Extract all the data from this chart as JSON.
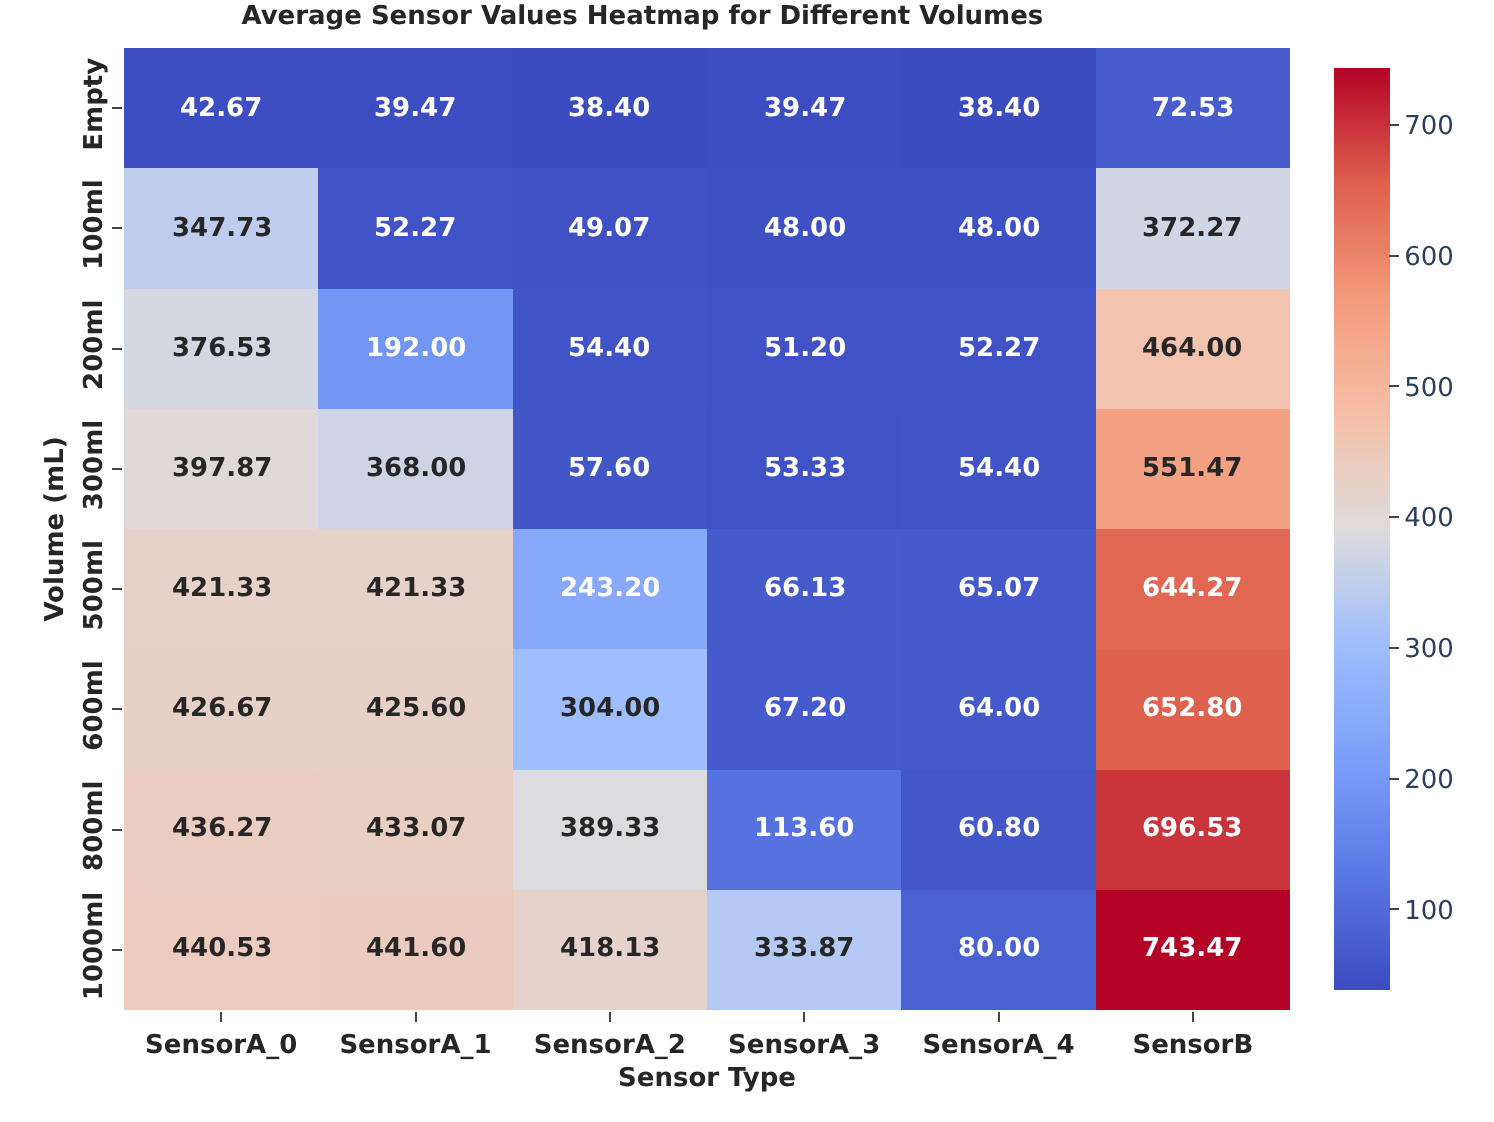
{
  "chart_data": {
    "type": "heatmap",
    "title": "Average Sensor Values Heatmap for Different Volumes",
    "xlabel": "Sensor Type",
    "ylabel": "Volume (mL)",
    "categories": [
      "SensorA_0",
      "SensorA_1",
      "SensorA_2",
      "SensorA_3",
      "SensorA_4",
      "SensorB"
    ],
    "y_categories": [
      "Empty",
      "100ml",
      "200ml",
      "300ml",
      "500ml",
      "600ml",
      "800ml",
      "1000ml"
    ],
    "cells": [
      [
        42.67,
        39.47,
        38.4,
        39.47,
        38.4,
        72.53
      ],
      [
        347.73,
        52.27,
        49.07,
        48.0,
        48.0,
        372.27
      ],
      [
        376.53,
        192.0,
        54.4,
        51.2,
        52.27,
        464.0
      ],
      [
        397.87,
        368.0,
        57.6,
        53.33,
        54.4,
        551.47
      ],
      [
        421.33,
        421.33,
        243.2,
        66.13,
        65.07,
        644.27
      ],
      [
        426.67,
        425.6,
        304.0,
        67.2,
        64.0,
        652.8
      ],
      [
        436.27,
        433.07,
        389.33,
        113.6,
        60.8,
        696.53
      ],
      [
        440.53,
        441.6,
        418.13,
        333.87,
        80.0,
        743.47
      ]
    ],
    "cell_labels": [
      [
        "42.67",
        "39.47",
        "38.40",
        "39.47",
        "38.40",
        "72.53"
      ],
      [
        "347.73",
        "52.27",
        "49.07",
        "48.00",
        "48.00",
        "372.27"
      ],
      [
        "376.53",
        "192.00",
        "54.40",
        "51.20",
        "52.27",
        "464.00"
      ],
      [
        "397.87",
        "368.00",
        "57.60",
        "53.33",
        "54.40",
        "551.47"
      ],
      [
        "421.33",
        "421.33",
        "243.20",
        "66.13",
        "65.07",
        "644.27"
      ],
      [
        "426.67",
        "425.60",
        "304.00",
        "67.20",
        "64.00",
        "652.80"
      ],
      [
        "436.27",
        "433.07",
        "389.33",
        "113.60",
        "60.80",
        "696.53"
      ],
      [
        "440.53",
        "441.60",
        "418.13",
        "333.87",
        "80.00",
        "743.47"
      ]
    ],
    "clim": [
      38.4,
      743.47
    ],
    "cticks": [
      100,
      200,
      300,
      400,
      500,
      600,
      700
    ]
  }
}
